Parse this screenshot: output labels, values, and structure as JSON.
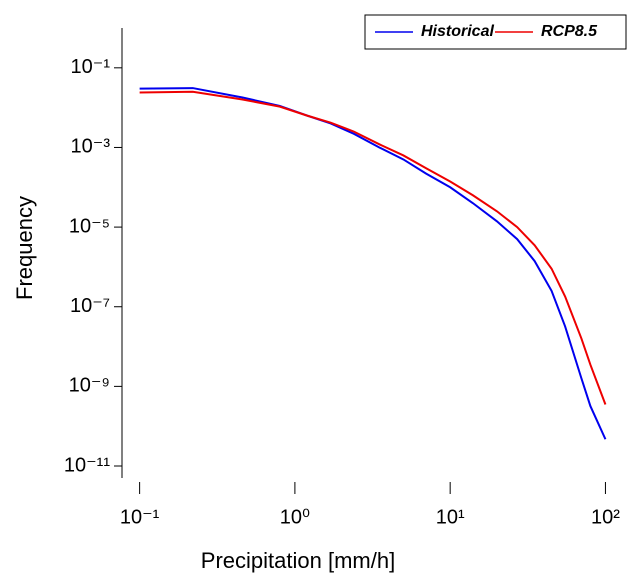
{
  "chart_data": {
    "type": "line",
    "x_label": "Precipitation [mm/h]",
    "y_label": "Frequency",
    "xlog": true,
    "ylog": true,
    "xlim": [
      0.077,
      107
    ],
    "ylim": [
      5e-12,
      1
    ],
    "xticks": [
      {
        "value": 0.1,
        "label": "10⁻¹"
      },
      {
        "value": 1,
        "label": "10⁰"
      },
      {
        "value": 10,
        "label": "10¹"
      },
      {
        "value": 100,
        "label": "10²"
      }
    ],
    "yticks": [
      {
        "value": 0.1,
        "label": "10⁻¹"
      },
      {
        "value": 0.001,
        "label": "10⁻³"
      },
      {
        "value": 1e-05,
        "label": "10⁻⁵"
      },
      {
        "value": 1e-07,
        "label": "10⁻⁷"
      },
      {
        "value": 1e-09,
        "label": "10⁻⁹"
      },
      {
        "value": 1e-11,
        "label": "10⁻¹¹"
      }
    ],
    "legend": "top-right",
    "x": [
      0.1,
      0.22,
      0.46,
      0.8,
      1.2,
      1.7,
      2.4,
      3.5,
      5,
      7,
      10,
      14,
      20,
      27,
      35,
      45,
      55,
      70,
      80,
      100
    ],
    "series": [
      {
        "name": "Historical",
        "color": "#0000ee",
        "values": [
          0.03,
          0.031,
          0.018,
          0.011,
          0.0063,
          0.004,
          0.0022,
          0.001,
          0.0005,
          0.00022,
          0.0001,
          4e-05,
          1.4e-05,
          5e-06,
          1.4e-06,
          2.5e-07,
          3.2e-08,
          1.6e-09,
          3.2e-10,
          4.7e-11
        ]
      },
      {
        "name": "RCP8.5",
        "color": "#ee0000",
        "values": [
          0.024,
          0.025,
          0.016,
          0.0106,
          0.0063,
          0.0042,
          0.0025,
          0.0012,
          0.00063,
          0.0003,
          0.00014,
          6.3e-05,
          2.5e-05,
          1e-05,
          3.5e-06,
          9e-07,
          1.8e-07,
          1.6e-08,
          3.5e-09,
          3.5e-10
        ]
      }
    ]
  }
}
